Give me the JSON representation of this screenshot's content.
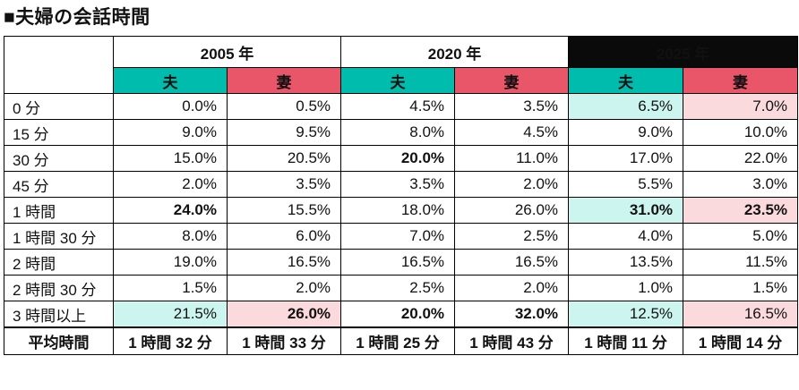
{
  "page": {
    "title": "■夫婦の会話時間"
  },
  "colors": {
    "teal": "#00BCAD",
    "red": "#E9566A",
    "light_teal": "#CDF5F0",
    "light_pink": "#FBDADD",
    "dark_header": "#0A0A0A"
  },
  "chart_data": {
    "type": "table",
    "title": "■夫婦の会話時間",
    "unit": "%",
    "year_groups": [
      {
        "label": "2005 年",
        "dark": false
      },
      {
        "label": "2020 年",
        "dark": false
      },
      {
        "label": "2025 年",
        "dark": true
      }
    ],
    "sub_headers": {
      "husband": "夫",
      "wife": "妻"
    },
    "rows": [
      {
        "label": "0 分",
        "cells": [
          {
            "v": "0.0%"
          },
          {
            "v": "0.5%"
          },
          {
            "v": "4.5%"
          },
          {
            "v": "3.5%"
          },
          {
            "v": "6.5%",
            "hl": "teal"
          },
          {
            "v": "7.0%",
            "hl": "pink"
          }
        ]
      },
      {
        "label": "15 分",
        "cells": [
          {
            "v": "9.0%"
          },
          {
            "v": "9.5%"
          },
          {
            "v": "8.0%"
          },
          {
            "v": "4.5%"
          },
          {
            "v": "9.0%"
          },
          {
            "v": "10.0%"
          }
        ]
      },
      {
        "label": "30 分",
        "cells": [
          {
            "v": "15.0%"
          },
          {
            "v": "20.5%"
          },
          {
            "v": "20.0%",
            "bold": true
          },
          {
            "v": "11.0%"
          },
          {
            "v": "17.0%"
          },
          {
            "v": "22.0%"
          }
        ]
      },
      {
        "label": "45 分",
        "cells": [
          {
            "v": "2.0%"
          },
          {
            "v": "3.5%"
          },
          {
            "v": "3.5%"
          },
          {
            "v": "2.0%"
          },
          {
            "v": "5.5%"
          },
          {
            "v": "3.0%"
          }
        ]
      },
      {
        "label": "1 時間",
        "cells": [
          {
            "v": "24.0%",
            "bold": true
          },
          {
            "v": "15.5%"
          },
          {
            "v": "18.0%"
          },
          {
            "v": "26.0%"
          },
          {
            "v": "31.0%",
            "bold": true,
            "hl": "teal"
          },
          {
            "v": "23.5%",
            "bold": true,
            "hl": "pink"
          }
        ]
      },
      {
        "label": "1 時間 30 分",
        "cells": [
          {
            "v": "8.0%"
          },
          {
            "v": "6.0%"
          },
          {
            "v": "7.0%"
          },
          {
            "v": "2.5%"
          },
          {
            "v": "4.0%"
          },
          {
            "v": "5.0%"
          }
        ]
      },
      {
        "label": "2 時間",
        "cells": [
          {
            "v": "19.0%"
          },
          {
            "v": "16.5%"
          },
          {
            "v": "16.5%"
          },
          {
            "v": "16.5%"
          },
          {
            "v": "13.5%"
          },
          {
            "v": "11.5%"
          }
        ]
      },
      {
        "label": "2 時間 30 分",
        "cells": [
          {
            "v": "1.5%"
          },
          {
            "v": "2.0%"
          },
          {
            "v": "2.5%"
          },
          {
            "v": "2.0%"
          },
          {
            "v": "1.0%"
          },
          {
            "v": "1.5%"
          }
        ]
      },
      {
        "label": "3 時間以上",
        "cells": [
          {
            "v": "21.5%",
            "hl": "teal"
          },
          {
            "v": "26.0%",
            "bold": true,
            "hl": "pink"
          },
          {
            "v": "20.0%",
            "bold": true
          },
          {
            "v": "32.0%",
            "bold": true
          },
          {
            "v": "12.5%",
            "hl": "teal"
          },
          {
            "v": "16.5%",
            "hl": "pink"
          }
        ]
      }
    ],
    "footer": {
      "label": "平均時間",
      "cells": [
        "1 時間 32 分",
        "1 時間 33 分",
        "1 時間 25 分",
        "1 時間 43 分",
        "1 時間 11 分",
        "1 時間 14 分"
      ]
    }
  }
}
